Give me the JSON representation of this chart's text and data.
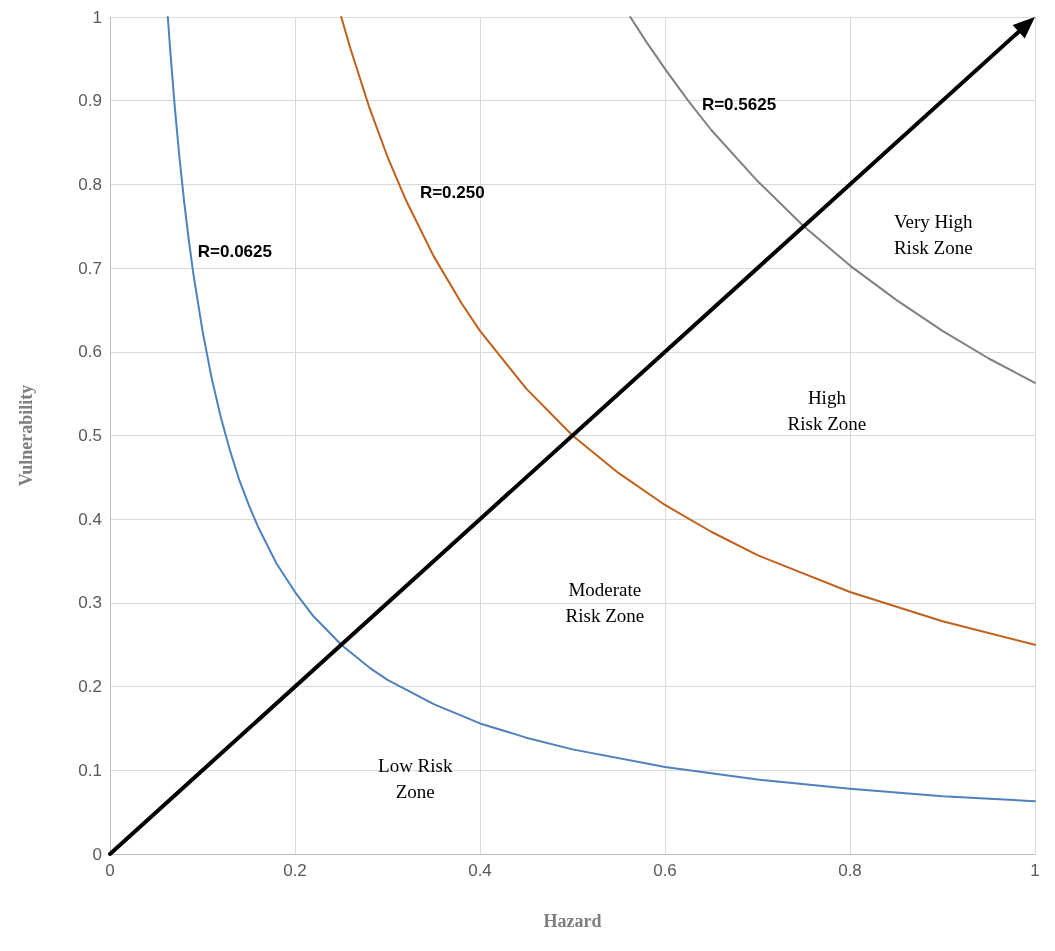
{
  "chart_data": {
    "type": "line",
    "xlabel": "Hazard",
    "ylabel": "Vulnerability",
    "xlim": [
      0,
      1
    ],
    "ylim": [
      0,
      1
    ],
    "xticks": [
      0,
      0.2,
      0.4,
      0.6,
      0.8,
      1
    ],
    "yticks": [
      0,
      0.1,
      0.2,
      0.3,
      0.4,
      0.5,
      0.6,
      0.7,
      0.8,
      0.9,
      1
    ],
    "grid": true,
    "legend": false,
    "marker": "none",
    "line_style": "solid",
    "series": [
      {
        "name": "R=0.0625",
        "color": "#4f81bd",
        "x": [
          0.0625,
          0.065,
          0.07,
          0.075,
          0.08,
          0.085,
          0.09,
          0.1,
          0.11,
          0.12,
          0.13,
          0.14,
          0.15,
          0.16,
          0.18,
          0.2,
          0.22,
          0.25,
          0.28,
          0.3,
          0.35,
          0.4,
          0.45,
          0.5,
          0.6,
          0.7,
          0.8,
          0.9,
          1
        ],
        "values": [
          1,
          0.962,
          0.893,
          0.833,
          0.781,
          0.735,
          0.694,
          0.625,
          0.568,
          0.521,
          0.481,
          0.446,
          0.417,
          0.391,
          0.347,
          0.313,
          0.284,
          0.25,
          0.223,
          0.208,
          0.179,
          0.156,
          0.139,
          0.125,
          0.104,
          0.089,
          0.078,
          0.069,
          0.063
        ]
      },
      {
        "name": "R=0.250",
        "color": "#c0601a",
        "x": [
          0.25,
          0.26,
          0.28,
          0.3,
          0.32,
          0.35,
          0.38,
          0.4,
          0.45,
          0.5,
          0.55,
          0.6,
          0.65,
          0.7,
          0.8,
          0.9,
          1
        ],
        "values": [
          1,
          0.962,
          0.893,
          0.833,
          0.781,
          0.714,
          0.658,
          0.625,
          0.556,
          0.5,
          0.455,
          0.417,
          0.385,
          0.357,
          0.313,
          0.278,
          0.25
        ]
      },
      {
        "name": "R=0.5625",
        "color": "#808080",
        "x": [
          0.5625,
          0.58,
          0.6,
          0.625,
          0.65,
          0.7,
          0.75,
          0.8,
          0.85,
          0.9,
          0.95,
          1
        ],
        "values": [
          1,
          0.97,
          0.938,
          0.9,
          0.865,
          0.804,
          0.75,
          0.703,
          0.662,
          0.625,
          0.592,
          0.563
        ]
      }
    ],
    "annotations": [
      "Very High\nRisk Zone",
      "High\nRisk Zone",
      "Moderate\nRisk Zone",
      "Low Risk\nZone"
    ]
  }
}
